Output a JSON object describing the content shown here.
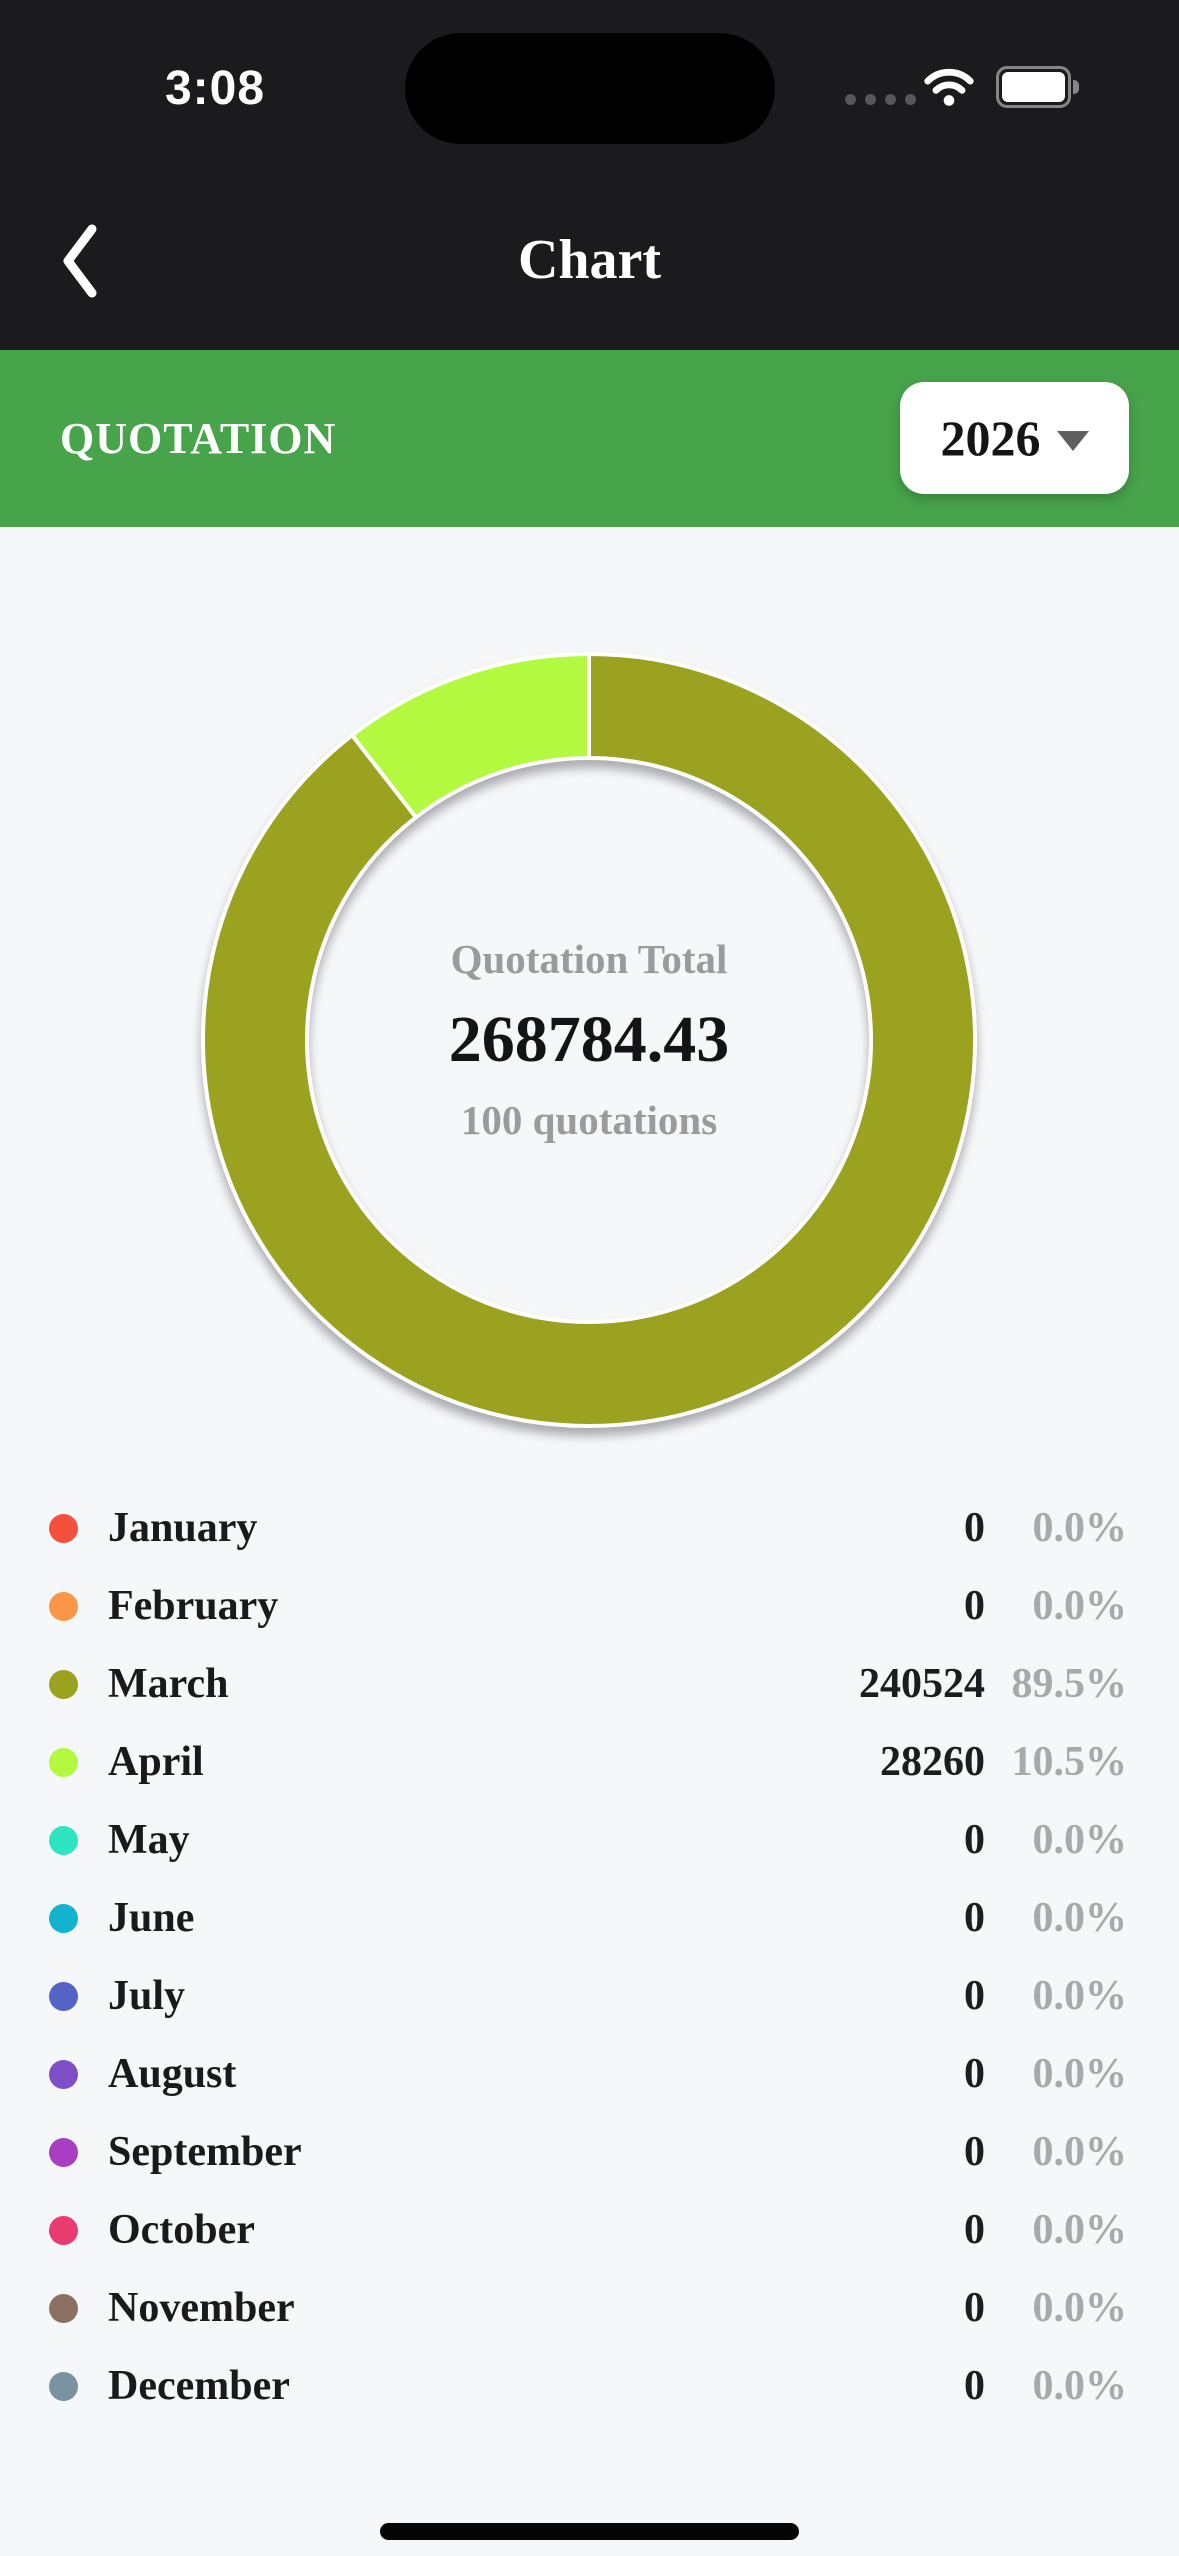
{
  "status_bar": {
    "time": "3:08"
  },
  "nav": {
    "title": "Chart"
  },
  "section_bar": {
    "label": "QUOTATION",
    "year": "2026"
  },
  "chart_data": {
    "type": "pie",
    "title": "Quotation Total",
    "legend_position": "bottom",
    "donut_hole_ratio": 0.73,
    "center": {
      "label": "Quotation Total",
      "total": "268784.43",
      "subtitle": "100 quotations"
    },
    "categories": [
      "January",
      "February",
      "March",
      "April",
      "May",
      "June",
      "July",
      "August",
      "September",
      "October",
      "November",
      "December"
    ],
    "values": [
      0,
      0,
      240524,
      28260,
      0,
      0,
      0,
      0,
      0,
      0,
      0,
      0
    ],
    "display_values": [
      "0",
      "0",
      "240524",
      "28260",
      "0",
      "0",
      "0",
      "0",
      "0",
      "0",
      "0",
      "0"
    ],
    "percent_labels": [
      "0.0%",
      "0.0%",
      "89.5%",
      "10.5%",
      "0.0%",
      "0.0%",
      "0.0%",
      "0.0%",
      "0.0%",
      "0.0%",
      "0.0%",
      "0.0%"
    ],
    "colors": [
      "#F5503E",
      "#FB9649",
      "#9BA220",
      "#B3F93F",
      "#2EE5C1",
      "#12B3CE",
      "#5463C6",
      "#7E4FC6",
      "#A83FC2",
      "#E93A72",
      "#8C6F63",
      "#7A93A1"
    ]
  },
  "colors": {
    "accent_green": "#47A44B",
    "header_bg": "#1B1B1D",
    "page_bg": "#F5F7F9",
    "percent_gray": "#A9A9A9",
    "center_gray": "#9B9B9B"
  }
}
